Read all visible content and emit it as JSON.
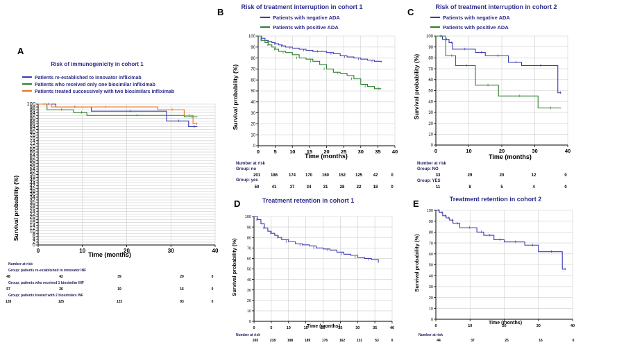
{
  "colors": {
    "blue": "#3b3bb0",
    "green": "#2e7d2e",
    "orange": "#e8731a",
    "title": "#2a2a8a",
    "grid": "#cccccc",
    "axis": "#000000"
  },
  "chart_data": [
    {
      "id": "A",
      "type": "line",
      "letter": "A",
      "title": "Risk of immunogenicity in cohort 1",
      "xlabel": "Time (months)",
      "ylabel": "Survival probability (%)",
      "xlim": [
        0,
        40
      ],
      "ylim": [
        0,
        100
      ],
      "xticks": [
        "0",
        "10",
        "20",
        "30",
        "40"
      ],
      "yticks": [
        "0",
        "2",
        "4",
        "6",
        "8",
        "10",
        "12",
        "14",
        "16",
        "18",
        "20",
        "22",
        "24",
        "26",
        "28",
        "30",
        "32",
        "34",
        "36",
        "38",
        "40",
        "42",
        "44",
        "46",
        "48",
        "50",
        "52",
        "54",
        "56",
        "58",
        "60",
        "62",
        "64",
        "66",
        "68",
        "70",
        "72",
        "74",
        "76",
        "78",
        "80",
        "82",
        "84",
        "86",
        "88",
        "90",
        "92",
        "94",
        "96",
        "98",
        "100"
      ],
      "grid": true,
      "series": [
        {
          "name": "Patients re-established to innovator infliximab",
          "color": "blue",
          "x": [
            0,
            4,
            4,
            12,
            12,
            29,
            29,
            34,
            34,
            36
          ],
          "y": [
            100,
            100,
            98,
            98,
            95,
            95,
            88,
            88,
            84,
            84
          ]
        },
        {
          "name": "Patients who received only one biosimilar infliximab",
          "color": "green",
          "x": [
            0,
            2,
            2,
            8,
            8,
            11,
            11,
            33,
            33,
            36
          ],
          "y": [
            100,
            100,
            96,
            96,
            94,
            94,
            92,
            92,
            91,
            91
          ]
        },
        {
          "name": "Patients treated successively with two biosimilars infliximab",
          "color": "orange",
          "x": [
            0,
            3,
            3,
            27,
            27,
            33,
            33,
            35,
            35,
            36
          ],
          "y": [
            100,
            100,
            98,
            98,
            96,
            96,
            92,
            92,
            86,
            86
          ]
        }
      ],
      "risk": {
        "header": "Number at risk",
        "rows": [
          {
            "group": "Group: patients re-established to innovator INF",
            "values": [
              "48",
              "42",
              "39",
              "29",
              "0"
            ]
          },
          {
            "group": "Group: patients who received 1 biosimilar INF",
            "values": [
              "57",
              "26",
              "19",
              "16",
              "0"
            ]
          },
          {
            "group": "Group: patients treated with 2 biosimilars INF",
            "values": [
              "128",
              "125",
              "123",
              "93",
              "0"
            ]
          }
        ]
      }
    },
    {
      "id": "B",
      "type": "line",
      "letter": "B",
      "title": "Risk of treatment interruption in cohort 1",
      "xlabel": "Time (months)",
      "ylabel": "Survival probability (%)",
      "xlim": [
        0,
        40
      ],
      "ylim": [
        0,
        100
      ],
      "xticks": [
        "0",
        "5",
        "10",
        "15",
        "20",
        "25",
        "30",
        "35",
        "40"
      ],
      "yticks": [
        "0",
        "10",
        "20",
        "30",
        "40",
        "50",
        "60",
        "70",
        "80",
        "90",
        "100"
      ],
      "grid": true,
      "series": [
        {
          "name": "Patients with negative ADA",
          "color": "blue",
          "x": [
            0,
            1,
            2,
            3,
            4,
            5,
            6,
            7,
            8,
            10,
            12,
            14,
            16,
            18,
            20,
            22,
            24,
            26,
            28,
            30,
            32,
            34,
            36
          ],
          "y": [
            100,
            98,
            96,
            95,
            94,
            93,
            92,
            91,
            90,
            89,
            88,
            87,
            86,
            86,
            85,
            84,
            82,
            81,
            80,
            79,
            78,
            77,
            76
          ]
        },
        {
          "name": "Patients with positive ADA",
          "color": "green",
          "x": [
            0,
            1,
            2,
            3,
            4,
            5,
            6,
            8,
            10,
            12,
            14,
            16,
            18,
            20,
            22,
            24,
            26,
            28,
            30,
            32,
            34,
            36
          ],
          "y": [
            100,
            96,
            94,
            92,
            90,
            88,
            86,
            85,
            83,
            80,
            79,
            77,
            74,
            70,
            67,
            66,
            64,
            61,
            56,
            54,
            52,
            52
          ]
        }
      ],
      "risk": {
        "header": "Number at risk",
        "rows": [
          {
            "group": "Group: no",
            "values": [
              "201",
              "186",
              "174",
              "170",
              "160",
              "152",
              "125",
              "42",
              "0"
            ]
          },
          {
            "group": "Group: yes",
            "values": [
              "50",
              "41",
              "37",
              "34",
              "31",
              "28",
              "22",
              "18",
              "0"
            ]
          }
        ]
      }
    },
    {
      "id": "C",
      "type": "line",
      "letter": "C",
      "title": "Risk of treatment interruption in cohort 2",
      "xlabel": "Time (months)",
      "ylabel": "Survival probability (%)",
      "xlim": [
        0,
        40
      ],
      "ylim": [
        0,
        100
      ],
      "xticks": [
        "0",
        "10",
        "20",
        "30",
        "40"
      ],
      "yticks": [
        "0",
        "10",
        "20",
        "30",
        "40",
        "50",
        "60",
        "70",
        "80",
        "90",
        "100"
      ],
      "grid": true,
      "series": [
        {
          "name": "Patients with negative ADA",
          "color": "blue",
          "x": [
            0,
            2,
            2,
            4,
            4,
            5,
            5,
            12,
            12,
            15,
            15,
            22,
            22,
            26,
            26,
            37,
            37,
            38
          ],
          "y": [
            100,
            100,
            97,
            97,
            94,
            94,
            88,
            88,
            85,
            85,
            82,
            82,
            76,
            76,
            73,
            73,
            48,
            48
          ]
        },
        {
          "name": "Patients with positive ADA",
          "color": "green",
          "x": [
            0,
            3,
            3,
            6,
            6,
            12,
            12,
            19,
            19,
            31,
            31,
            38
          ],
          "y": [
            100,
            100,
            82,
            82,
            73,
            73,
            55,
            55,
            45,
            45,
            34,
            34
          ]
        }
      ],
      "risk": {
        "header": "Number at risk",
        "rows": [
          {
            "group": "Group: NO",
            "values": [
              "33",
              "29",
              "20",
              "12",
              "0"
            ]
          },
          {
            "group": "Group: YES",
            "values": [
              "11",
              "8",
              "5",
              "4",
              "0"
            ]
          }
        ]
      }
    },
    {
      "id": "D",
      "type": "line",
      "letter": "D",
      "title": "Treatment retention in cohort 1",
      "xlabel": "Time (months)",
      "ylabel": "Survival probability (%)",
      "xlim": [
        0,
        40
      ],
      "ylim": [
        0,
        100
      ],
      "xticks": [
        "0",
        "5",
        "10",
        "15",
        "20",
        "25",
        "30",
        "35",
        "40"
      ],
      "yticks": [
        "0",
        "10",
        "20",
        "30",
        "40",
        "50",
        "60",
        "70",
        "80",
        "90",
        "100"
      ],
      "grid": true,
      "series": [
        {
          "name": "",
          "color": "blue",
          "x": [
            0,
            1,
            2,
            3,
            4,
            5,
            6,
            7,
            8,
            10,
            12,
            14,
            16,
            18,
            20,
            22,
            24,
            26,
            28,
            30,
            32,
            34,
            36
          ],
          "y": [
            100,
            97,
            93,
            89,
            86,
            84,
            82,
            80,
            78,
            76,
            74,
            73,
            72,
            70,
            69,
            68,
            66,
            64,
            63,
            61,
            60,
            59,
            56
          ]
        }
      ],
      "risk": {
        "header": "Number at risk",
        "rows": [
          {
            "group": "",
            "values": [
              "265",
              "218",
              "198",
              "189",
              "176",
              "162",
              "131",
              "53",
              "0"
            ]
          }
        ]
      }
    },
    {
      "id": "E",
      "type": "line",
      "letter": "E",
      "title": "Treatment retention in cohort 2",
      "xlabel": "Time (months)",
      "ylabel": "Survival probability (%)",
      "xlim": [
        0,
        40
      ],
      "ylim": [
        0,
        100
      ],
      "xticks": [
        "0",
        "10",
        "20",
        "30",
        "40"
      ],
      "yticks": [
        "0",
        "10",
        "20",
        "30",
        "40",
        "50",
        "60",
        "70",
        "80",
        "90",
        "100"
      ],
      "grid": true,
      "series": [
        {
          "name": "",
          "color": "blue",
          "x": [
            0,
            1,
            1,
            2,
            2,
            3,
            3,
            4,
            4,
            5,
            5,
            7,
            7,
            12,
            12,
            14,
            14,
            17,
            17,
            20,
            20,
            26,
            26,
            30,
            30,
            37,
            37,
            38
          ],
          "y": [
            100,
            100,
            98,
            98,
            95,
            95,
            93,
            93,
            91,
            91,
            88,
            88,
            84,
            84,
            80,
            80,
            77,
            77,
            73,
            73,
            71,
            71,
            68,
            68,
            62,
            62,
            46,
            46
          ]
        }
      ],
      "risk": {
        "header": "Number at risk",
        "rows": [
          {
            "group": "",
            "values": [
              "44",
              "37",
              "25",
              "16",
              "0"
            ]
          }
        ]
      }
    }
  ]
}
